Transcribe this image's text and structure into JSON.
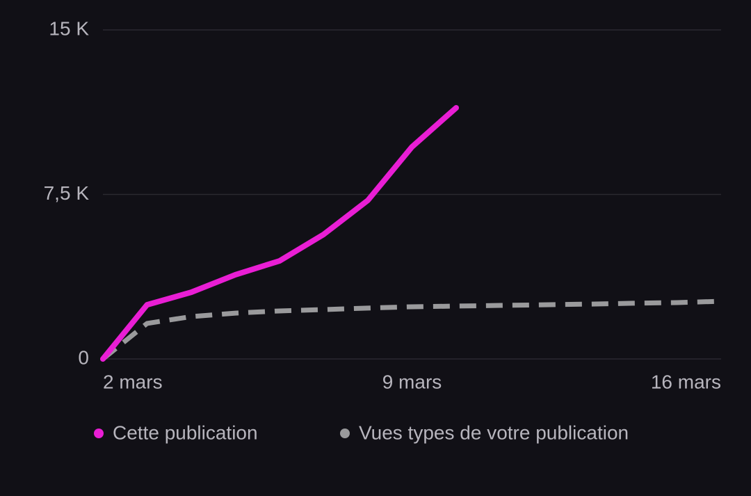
{
  "chart_data": {
    "type": "line",
    "categories": [
      "2 mars",
      null,
      null,
      null,
      null,
      null,
      null,
      "9 mars",
      null,
      null,
      null,
      null,
      null,
      null,
      "16 mars"
    ],
    "series": [
      {
        "name": "Cette publication",
        "color": "#e91ed4",
        "style": "solid",
        "values": [
          0,
          2470,
          3040,
          3840,
          4470,
          5680,
          7230,
          9670,
          11450,
          null,
          null,
          null,
          null,
          null,
          null
        ]
      },
      {
        "name": "Vues types de votre publication",
        "color": "#9a9a9c",
        "style": "dashed",
        "values": [
          0,
          1620,
          1930,
          2090,
          2190,
          2250,
          2320,
          2380,
          2410,
          2440,
          2470,
          2500,
          2540,
          2570,
          2630
        ]
      }
    ],
    "ylim": [
      0,
      15000
    ],
    "yticks": [
      {
        "value": 0,
        "label": "0"
      },
      {
        "value": 7500,
        "label": "7,5 K"
      },
      {
        "value": 15000,
        "label": "15 K"
      }
    ],
    "grid": true
  }
}
